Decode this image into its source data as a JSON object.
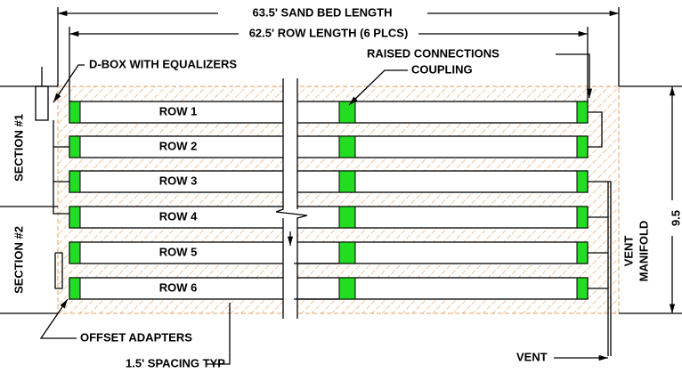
{
  "dimensions": {
    "sand_bed_length": "63.5' SAND BED LENGTH",
    "row_length": "62.5' ROW LENGTH (6 PLCS)",
    "bed_width": "9.5"
  },
  "callouts": {
    "dbox": "D-BOX WITH EQUALIZERS",
    "raised": "RAISED CONNECTIONS",
    "coupling": "COUPLING",
    "offset": "OFFSET ADAPTERS",
    "spacing": "1.5' SPACING TYP",
    "vent": "VENT",
    "manifold_1": "VENT",
    "manifold_2": "MANIFOLD"
  },
  "sections": [
    "SECTION #1",
    "SECTION #2"
  ],
  "rows": [
    "ROW 1",
    "ROW 2",
    "ROW 3",
    "ROW 4",
    "ROW 5",
    "ROW 6"
  ]
}
